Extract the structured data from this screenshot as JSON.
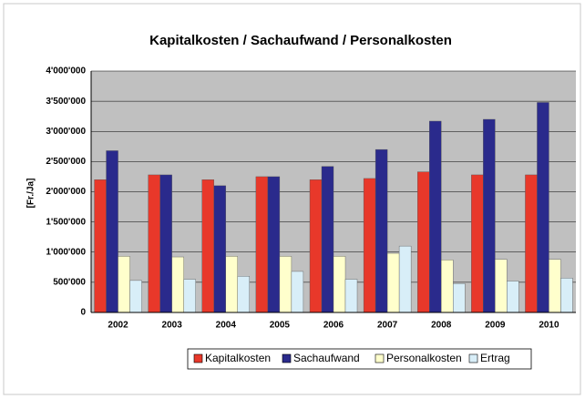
{
  "chart_data": {
    "type": "bar",
    "title": "Kapitalkosten / Sachaufwand / Personalkosten",
    "y_label": "[Fr./Ja]",
    "categories": [
      "2002",
      "2003",
      "2004",
      "2005",
      "2006",
      "2007",
      "2008",
      "2009",
      "2010"
    ],
    "series": [
      {
        "name": "Kapitalkosten",
        "color": "#e8382a",
        "values": [
          2200000,
          2280000,
          2200000,
          2250000,
          2200000,
          2220000,
          2330000,
          2280000,
          2280000
        ]
      },
      {
        "name": "Sachaufwand",
        "color": "#2a2a8c",
        "values": [
          2680000,
          2280000,
          2100000,
          2250000,
          2420000,
          2700000,
          3170000,
          3200000,
          3480000
        ]
      },
      {
        "name": "Personalkosten",
        "color": "#ffffcc",
        "values": [
          930000,
          920000,
          930000,
          930000,
          930000,
          980000,
          870000,
          880000,
          880000
        ]
      },
      {
        "name": "Ertrag",
        "color": "#d8eef8",
        "values": [
          530000,
          550000,
          600000,
          680000,
          550000,
          1100000,
          480000,
          520000,
          570000
        ]
      }
    ],
    "ylim": [
      0,
      4000000
    ],
    "yticks": [
      0,
      {
        "value": 500000,
        "label": "500'000"
      },
      {
        "value": 1000000,
        "label": "1'000'000"
      },
      {
        "value": 1500000,
        "label": "1'500'000"
      },
      {
        "value": 2000000,
        "label": "2'000'000"
      },
      {
        "value": 2500000,
        "label": "2'500'000"
      },
      {
        "value": 3000000,
        "label": "3'000'000"
      },
      {
        "value": 3500000,
        "label": "3'500'000"
      },
      {
        "value": 4000000,
        "label": "4'000'000"
      }
    ],
    "grid": true,
    "legend": "bottom"
  }
}
